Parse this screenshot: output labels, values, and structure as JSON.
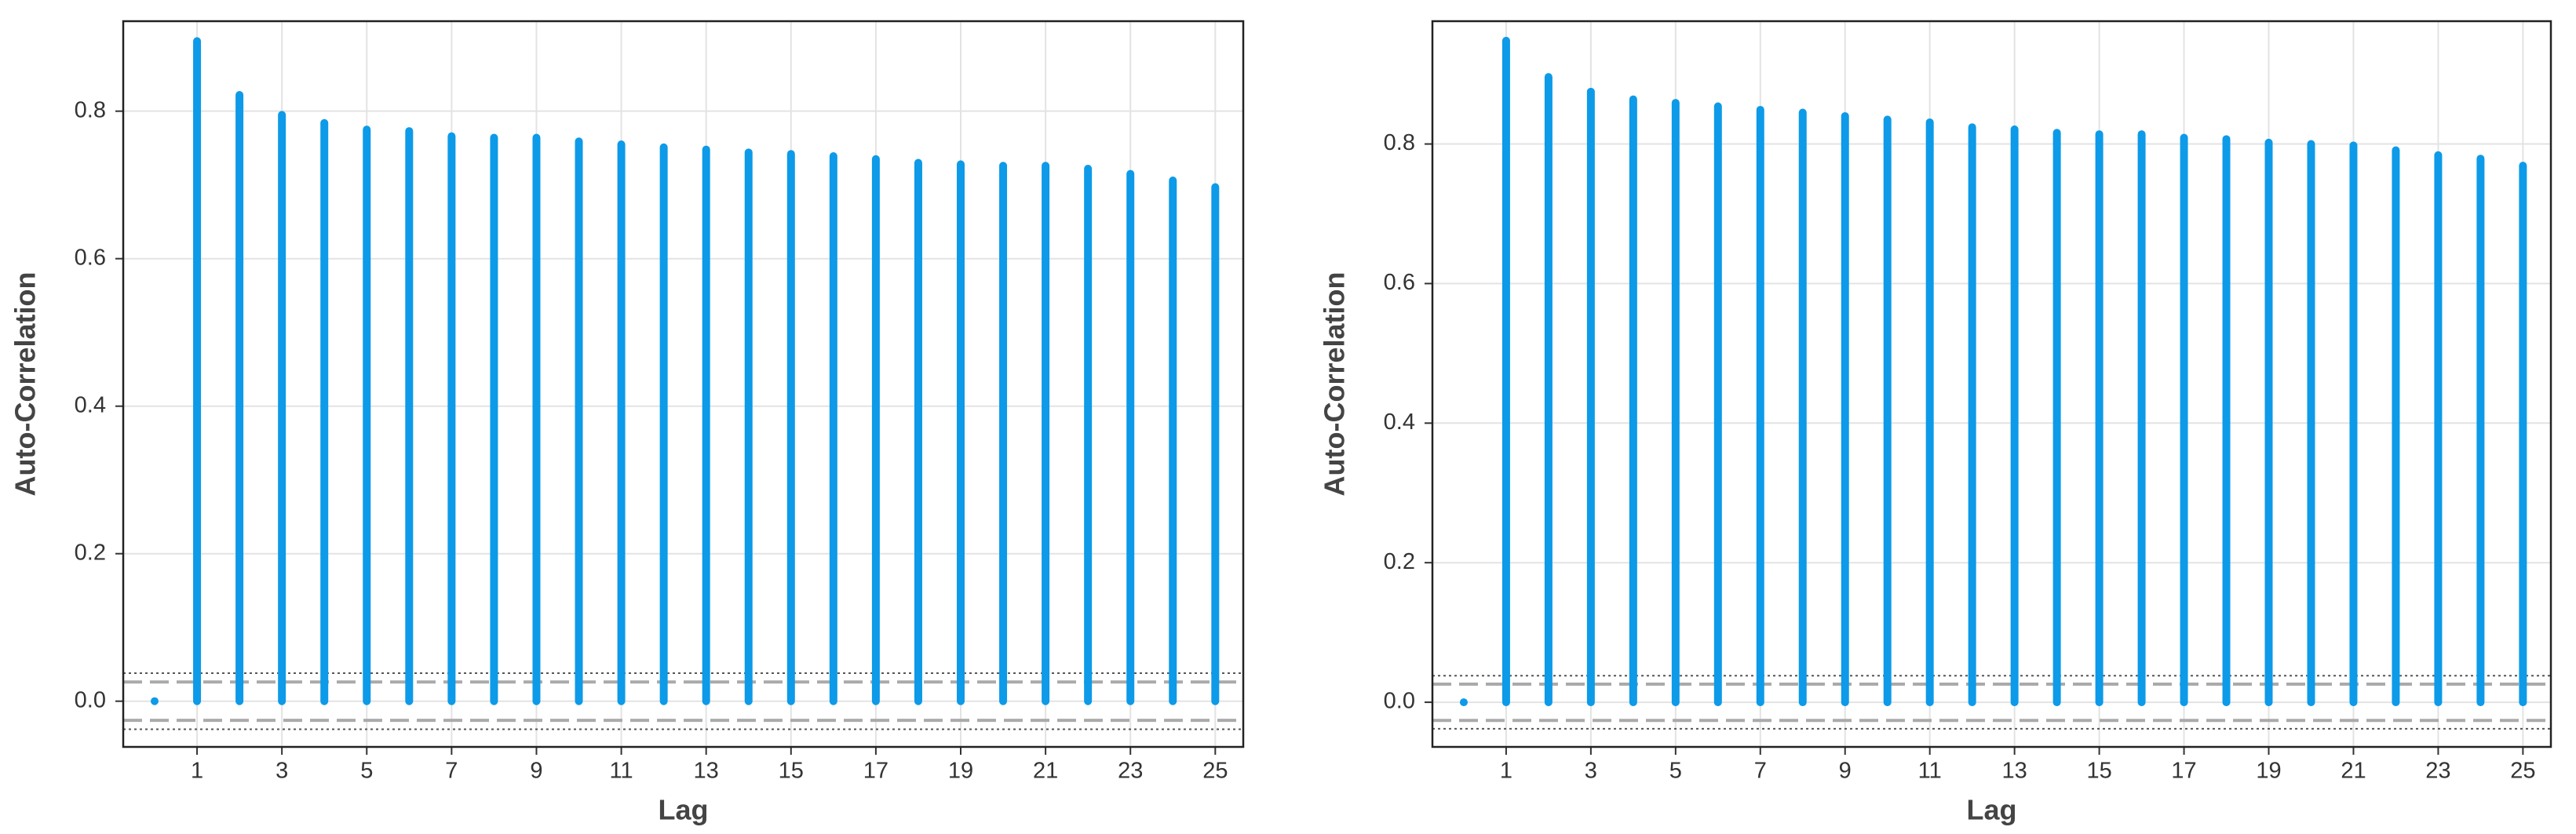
{
  "chart_data": [
    {
      "type": "stem",
      "xlabel": "Lag",
      "ylabel": "Auto-Correlation",
      "color": "#0d9ae8",
      "grid": true,
      "x": [
        0,
        1,
        2,
        3,
        4,
        5,
        6,
        7,
        8,
        9,
        10,
        11,
        12,
        13,
        14,
        15,
        16,
        17,
        18,
        19,
        20,
        21,
        22,
        23,
        24,
        25
      ],
      "values": [
        0,
        0.895,
        0.822,
        0.795,
        0.784,
        0.775,
        0.773,
        0.766,
        0.764,
        0.764,
        0.759,
        0.755,
        0.751,
        0.748,
        0.744,
        0.742,
        0.739,
        0.735,
        0.73,
        0.728,
        0.726,
        0.726,
        0.722,
        0.715,
        0.706,
        0.697
      ],
      "xlim": [
        -0.74,
        25.66
      ],
      "xticks": [
        1,
        3,
        5,
        7,
        9,
        11,
        13,
        15,
        17,
        19,
        21,
        23,
        25
      ],
      "ylim": [
        -0.062,
        0.922
      ],
      "yticks": [
        {
          "value": 0,
          "label": "0.0"
        },
        {
          "value": 0.2,
          "label": "0.2"
        },
        {
          "value": 0.4,
          "label": "0.4"
        },
        {
          "value": 0.6,
          "label": "0.6"
        },
        {
          "value": 0.8,
          "label": "0.8"
        }
      ],
      "dashed_lines": [
        0.026,
        -0.026
      ],
      "dotted_lines": [
        0.038,
        -0.038
      ]
    },
    {
      "type": "stem",
      "xlabel": "Lag",
      "ylabel": "Auto-Correlation",
      "color": "#0d9ae8",
      "grid": true,
      "x": [
        0,
        1,
        2,
        3,
        4,
        5,
        6,
        7,
        8,
        9,
        10,
        11,
        12,
        13,
        14,
        15,
        16,
        17,
        18,
        19,
        20,
        21,
        22,
        23,
        24,
        25
      ],
      "values": [
        0,
        0.948,
        0.896,
        0.875,
        0.864,
        0.859,
        0.854,
        0.849,
        0.845,
        0.84,
        0.835,
        0.831,
        0.824,
        0.821,
        0.816,
        0.814,
        0.814,
        0.809,
        0.807,
        0.802,
        0.8,
        0.798,
        0.791,
        0.784,
        0.779,
        0.769
      ],
      "xlim": [
        -0.74,
        25.66
      ],
      "xticks": [
        1,
        3,
        5,
        7,
        9,
        11,
        13,
        15,
        17,
        19,
        21,
        23,
        25
      ],
      "ylim": [
        -0.064,
        0.976
      ],
      "yticks": [
        {
          "value": 0,
          "label": "0.0"
        },
        {
          "value": 0.2,
          "label": "0.2"
        },
        {
          "value": 0.4,
          "label": "0.4"
        },
        {
          "value": 0.6,
          "label": "0.6"
        },
        {
          "value": 0.8,
          "label": "0.8"
        }
      ],
      "dashed_lines": [
        0.026,
        -0.026
      ],
      "dotted_lines": [
        0.038,
        -0.038
      ]
    }
  ]
}
